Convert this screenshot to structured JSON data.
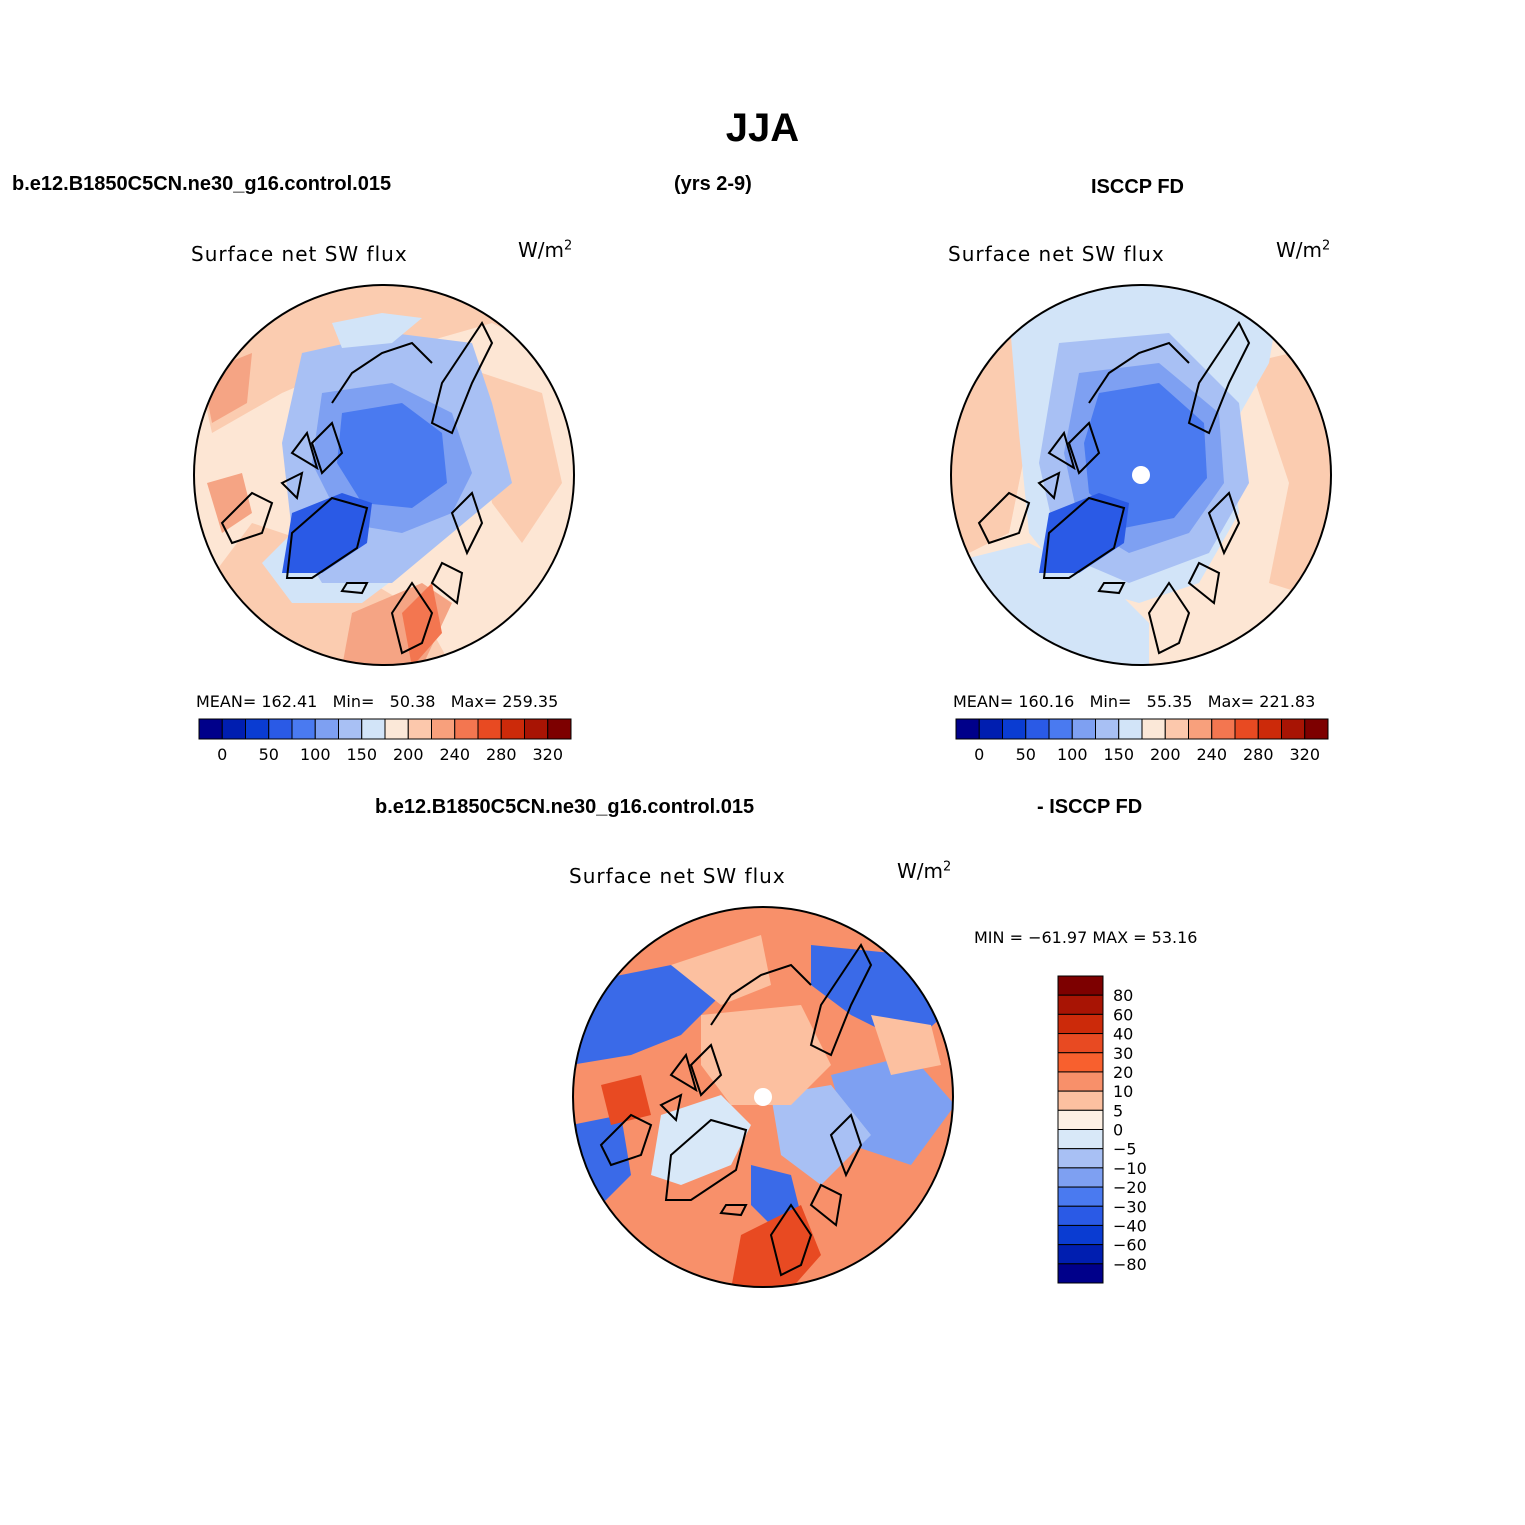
{
  "title": "JJA",
  "header": {
    "left": "b.e12.B1850C5CN.ne30_g16.control.015",
    "center": "(yrs 2-9)",
    "right": "ISCCP FD"
  },
  "diff_header": {
    "left": "b.e12.B1850C5CN.ne30_g16.control.015",
    "right": "- ISCCP FD"
  },
  "panels": [
    {
      "title": "Surface net SW flux",
      "units_base": "W/m",
      "units_exp": "2",
      "stats": {
        "mean_label": "MEAN=",
        "mean": "162.41",
        "min_label": "Min=",
        "min": "50.38",
        "max_label": "Max=",
        "max": "259.35"
      }
    },
    {
      "title": "Surface net SW flux",
      "units_base": "W/m",
      "units_exp": "2",
      "stats": {
        "mean_label": "MEAN=",
        "mean": "160.16",
        "min_label": "Min=",
        "min": "55.35",
        "max_label": "Max=",
        "max": "221.83"
      }
    }
  ],
  "diff_panel": {
    "title": "Surface net SW flux",
    "units_base": "W/m",
    "units_exp": "2",
    "minmax": "MIN = −61.97 MAX =   53.16"
  },
  "colorbar_h": {
    "colors": [
      "#00008a",
      "#001eb0",
      "#0a3cd2",
      "#2a5ae6",
      "#4a7af0",
      "#7ea0f2",
      "#a8c0f4",
      "#d2e4f8",
      "#fbe8d8",
      "#fcc8ac",
      "#f8a07c",
      "#f37650",
      "#e84a22",
      "#cc2a0a",
      "#a81404",
      "#7d0000"
    ],
    "labels": [
      "0",
      "50",
      "100",
      "150",
      "200",
      "240",
      "280",
      "320"
    ]
  },
  "colorbar_v": {
    "colors": [
      "#7d0000",
      "#a81404",
      "#cc2a0a",
      "#e84a22",
      "#f8602e",
      "#f8906a",
      "#fcc0a0",
      "#fdf0e4",
      "#d8e8f8",
      "#a8c0f4",
      "#7ea0f2",
      "#4a7af0",
      "#2a5ae6",
      "#0a3cd2",
      "#001eb0",
      "#00008a"
    ],
    "labels": [
      "80",
      "60",
      "40",
      "30",
      "20",
      "10",
      "5",
      "0",
      "−5",
      "−10",
      "−20",
      "−30",
      "−40",
      "−60",
      "−80"
    ]
  },
  "palette": {
    "ocean_warm": "#fde6d4",
    "ocean_warm2": "#fbccb0",
    "land_warm": "#f5a484",
    "ice_blue": "#4a7af0",
    "deep_blue": "#2a5ae6",
    "light_blue": "#d2e4f8",
    "diff_red": "#f07a52",
    "diff_blue": "#3a6ae8"
  }
}
